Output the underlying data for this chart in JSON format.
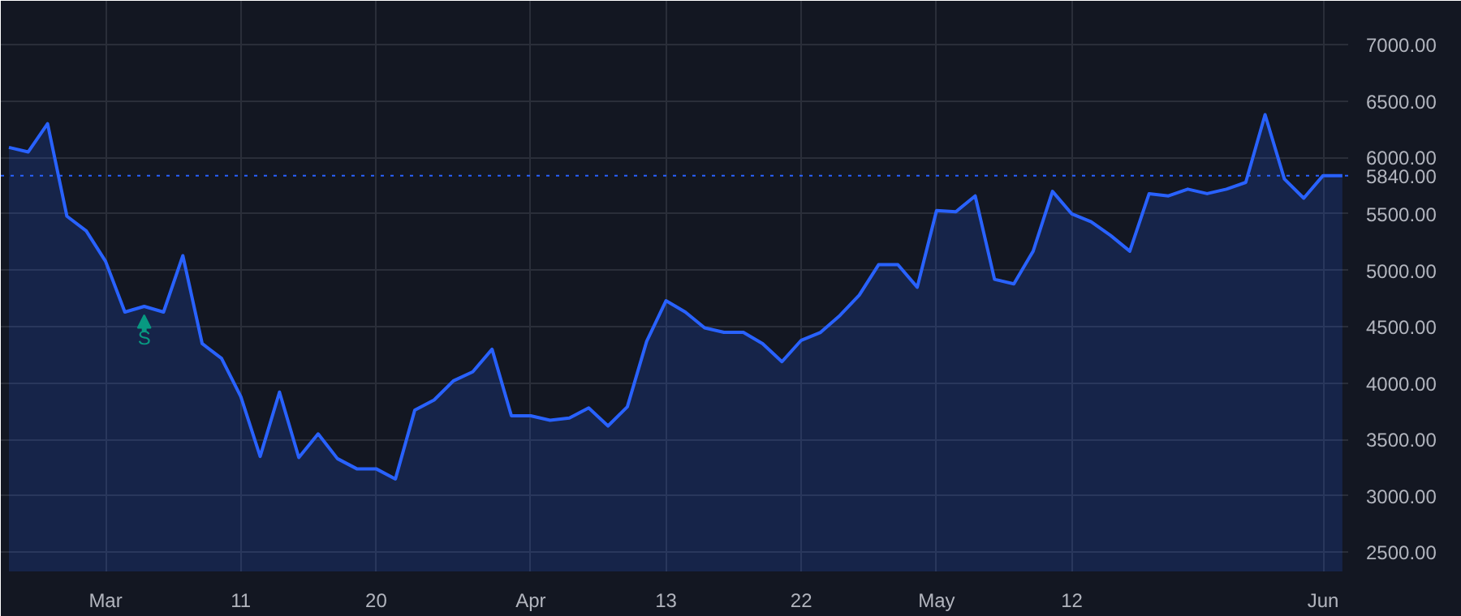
{
  "chart_data": {
    "type": "area",
    "categories": [
      null,
      null,
      null,
      null,
      null,
      "Mar",
      null,
      null,
      null,
      null,
      null,
      null,
      "11",
      null,
      null,
      null,
      null,
      null,
      null,
      "20",
      null,
      null,
      null,
      null,
      null,
      null,
      null,
      "Apr",
      null,
      null,
      null,
      null,
      null,
      null,
      "13",
      null,
      null,
      null,
      null,
      null,
      null,
      "22",
      null,
      null,
      null,
      null,
      null,
      null,
      "May",
      null,
      null,
      null,
      null,
      null,
      null,
      "12",
      null,
      null,
      null,
      null,
      null,
      null,
      null,
      null,
      null,
      null,
      null,
      null,
      "Jun",
      null
    ],
    "series": [
      {
        "color": "#2962ff",
        "values": [
          6090,
          6050,
          6300,
          5480,
          5350,
          5080,
          4630,
          4680,
          4630,
          5130,
          4350,
          4220,
          3880,
          3350,
          3920,
          3340,
          3550,
          3330,
          3240,
          3240,
          3150,
          3760,
          3850,
          4020,
          4100,
          4300,
          3710,
          3710,
          3670,
          3690,
          3780,
          3620,
          3790,
          4370,
          4730,
          4630,
          4490,
          4450,
          4450,
          4350,
          4190,
          4380,
          4450,
          4600,
          4780,
          5050,
          5050,
          4850,
          5530,
          5520,
          5660,
          4920,
          4880,
          5170,
          5700,
          5500,
          5430,
          5310,
          5170,
          5680,
          5660,
          5720,
          5680,
          5720,
          5780,
          6380,
          5810,
          5640,
          5840,
          5840
        ]
      }
    ],
    "ylim": [
      2330,
      7390
    ],
    "yticks": [
      {
        "value": 2500,
        "label": "2500.00"
      },
      {
        "value": 3000,
        "label": "3000.00"
      },
      {
        "value": 3500,
        "label": "3500.00"
      },
      {
        "value": 4000,
        "label": "4000.00"
      },
      {
        "value": 4500,
        "label": "4500.00"
      },
      {
        "value": 5000,
        "label": "5000.00"
      },
      {
        "value": 5500,
        "label": "5500.00"
      },
      {
        "value": 6000,
        "label": "6000.00"
      },
      {
        "value": 6500,
        "label": "6500.00"
      },
      {
        "value": 7000,
        "label": "7000.00"
      }
    ],
    "ref_lines": [
      {
        "axis": "y",
        "value": 5840,
        "label": "5840.00",
        "color": "#2962ff",
        "line_style": "dotted"
      }
    ],
    "annotations": [
      {
        "text": "S",
        "y": 4680
      }
    ],
    "grid": true,
    "marker": "none",
    "line_style": "solid"
  }
}
